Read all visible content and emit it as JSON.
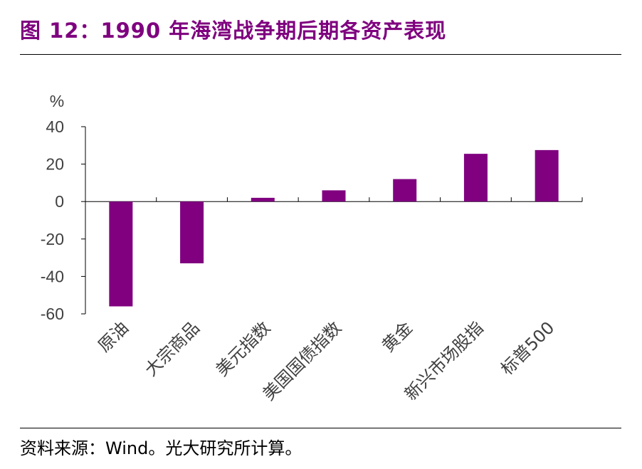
{
  "header": {
    "title": "图 12：1990 年海湾战争期后期各资产表现"
  },
  "footer": {
    "source": "资料来源：Wind。光大研究所计算。"
  },
  "colors": {
    "accent": "#7F007F",
    "bar": "#800080",
    "axis": "#000000",
    "text": "#404040"
  },
  "chart_data": {
    "type": "bar",
    "title": "1990 年海湾战争期后期各资产表现",
    "ylabel": "%",
    "xlabel": "",
    "ylim": [
      -60,
      40
    ],
    "yticks": [
      40,
      20,
      0,
      -20,
      -40,
      -60
    ],
    "grid": false,
    "categories": [
      "原油",
      "大宗商品",
      "美元指数",
      "美国国债指数",
      "黄金",
      "新兴市场股指",
      "标普500"
    ],
    "values": [
      -56,
      -33,
      2,
      6,
      12,
      25.5,
      27.5
    ]
  }
}
